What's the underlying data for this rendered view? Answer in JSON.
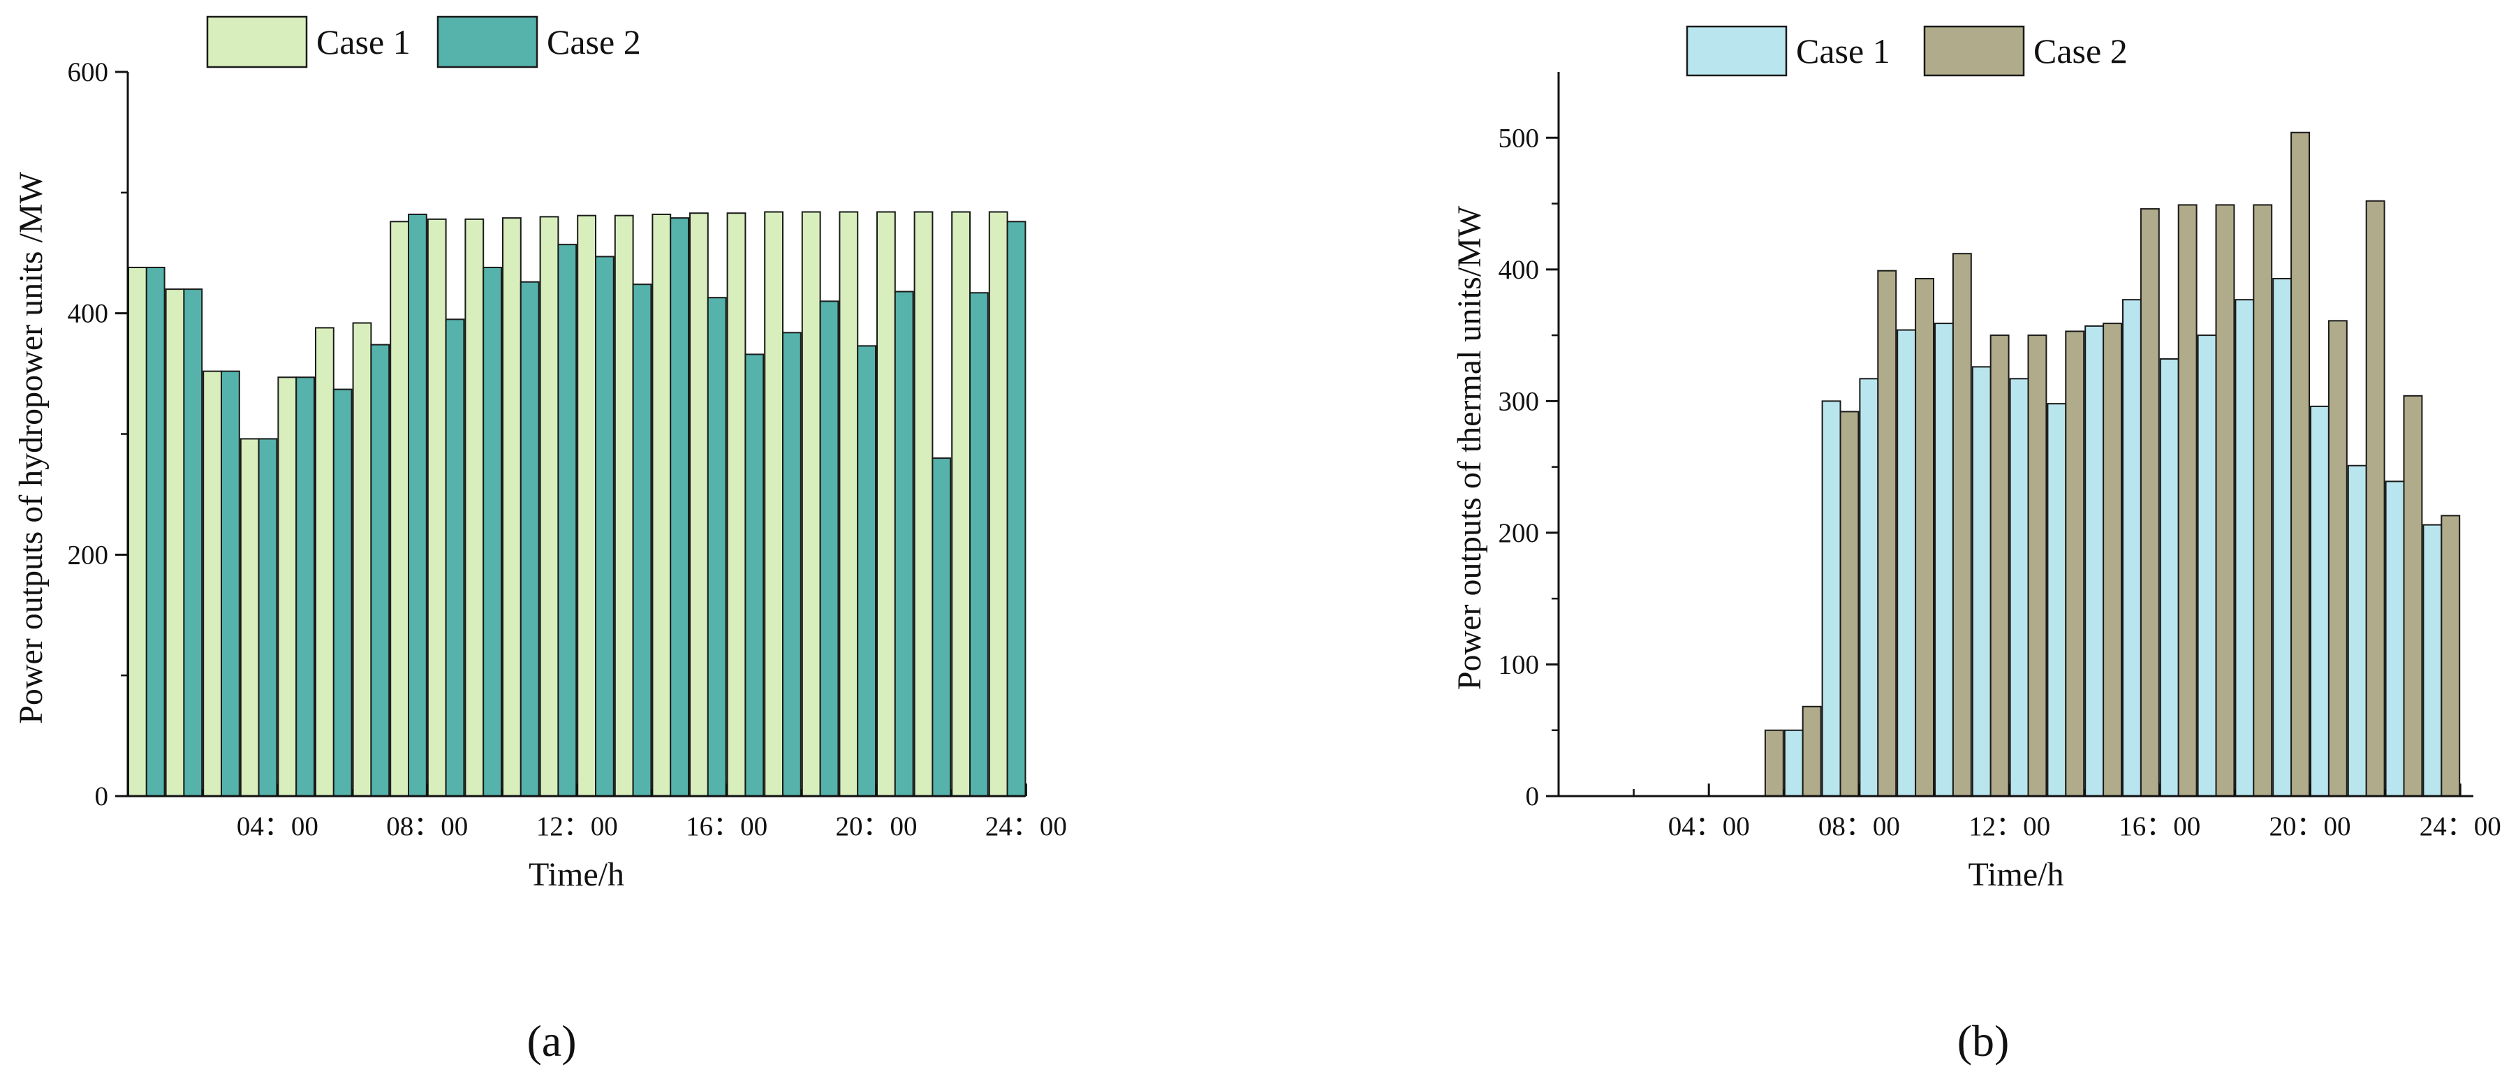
{
  "chart_data": [
    {
      "type": "bar",
      "panel_label": "(a)",
      "title": "",
      "xlabel": "Time/h",
      "ylabel": "Power outputs of hydropower units /MW",
      "x_tick_labels": [
        "04：00",
        "08：00",
        "12：00",
        "16：00",
        "20：00",
        "24：00"
      ],
      "x_tick_hours": [
        4,
        8,
        12,
        16,
        20,
        24
      ],
      "y_ticks": [
        0,
        200,
        400,
        600
      ],
      "ylim": [
        0,
        600
      ],
      "hours": [
        1,
        2,
        3,
        4,
        5,
        6,
        7,
        8,
        9,
        10,
        11,
        12,
        13,
        14,
        15,
        16,
        17,
        18,
        19,
        20,
        21,
        22,
        23,
        24
      ],
      "legend_position": "top-left",
      "series": [
        {
          "name": "Case 1",
          "color": "#d8efbd",
          "values": [
            438,
            420,
            352,
            296,
            347,
            388,
            392,
            476,
            478,
            478,
            479,
            480,
            481,
            481,
            482,
            483,
            483,
            484,
            484,
            484,
            484,
            484,
            484,
            484
          ]
        },
        {
          "name": "Case 2",
          "color": "#55b3ab",
          "values": [
            438,
            420,
            352,
            296,
            347,
            337,
            374,
            482,
            395,
            438,
            426,
            457,
            447,
            424,
            479,
            413,
            366,
            384,
            410,
            373,
            418,
            280,
            417,
            476
          ]
        }
      ]
    },
    {
      "type": "bar",
      "panel_label": "(b)",
      "title": "",
      "xlabel": "Time/h",
      "ylabel": "Power outputs of thermal units/MW",
      "x_tick_labels": [
        "04：00",
        "08：00",
        "12：00",
        "16：00",
        "20：00",
        "24：00"
      ],
      "x_tick_hours": [
        4,
        8,
        12,
        16,
        20,
        24
      ],
      "y_ticks": [
        0,
        100,
        200,
        300,
        400,
        500
      ],
      "ylim": [
        0,
        550
      ],
      "hours": [
        1,
        2,
        3,
        4,
        5,
        6,
        7,
        8,
        9,
        10,
        11,
        12,
        13,
        14,
        15,
        16,
        17,
        18,
        19,
        20,
        21,
        22,
        23,
        24
      ],
      "legend_position": "top-left",
      "series": [
        {
          "name": "Case 1",
          "color": "#b9e6ee",
          "values": [
            0,
            0,
            0,
            0,
            0,
            0,
            50,
            300,
            317,
            354,
            359,
            326,
            317,
            298,
            357,
            377,
            332,
            350,
            377,
            393,
            296,
            251,
            239,
            206
          ]
        },
        {
          "name": "Case 2",
          "color": "#b0ab8a",
          "values": [
            0,
            0,
            0,
            0,
            0,
            50,
            68,
            292,
            399,
            393,
            412,
            350,
            350,
            353,
            359,
            446,
            449,
            449,
            449,
            504,
            361,
            452,
            304,
            213
          ]
        }
      ]
    }
  ]
}
